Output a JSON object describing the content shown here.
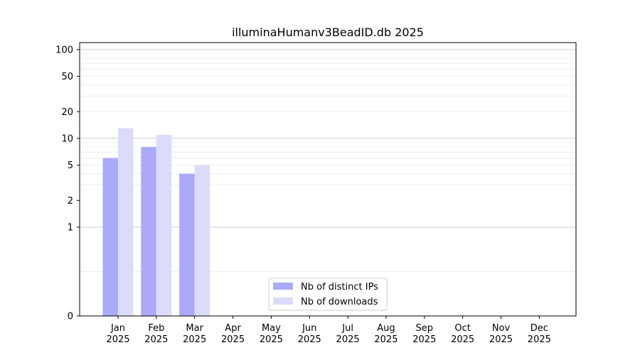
{
  "chart_data": {
    "type": "bar",
    "title": "illuminaHumanv3BeadID.db 2025",
    "xlabel": "",
    "ylabel": "",
    "yscale": "symlog",
    "ylim": [
      0,
      120
    ],
    "yticks": [
      0,
      1,
      2,
      5,
      10,
      20,
      50,
      100
    ],
    "ytick_labels": [
      "0",
      "1",
      "2",
      "5",
      "10",
      "20",
      "50",
      "100"
    ],
    "categories": [
      "Jan\n2025",
      "Feb\n2025",
      "Mar\n2025",
      "Apr\n2025",
      "May\n2025",
      "Jun\n2025",
      "Jul\n2025",
      "Aug\n2025",
      "Sep\n2025",
      "Oct\n2025",
      "Nov\n2025",
      "Dec\n2025"
    ],
    "series": [
      {
        "name": "Nb of distinct IPs",
        "values": [
          6,
          8,
          4,
          0,
          0,
          0,
          0,
          0,
          0,
          0,
          0,
          0
        ],
        "color": "#aaaaf8"
      },
      {
        "name": "Nb of downloads",
        "values": [
          13,
          11,
          5,
          0,
          0,
          0,
          0,
          0,
          0,
          0,
          0,
          0
        ],
        "color": "#dcdcfa"
      }
    ],
    "legend_position": "lower-center",
    "grid": true
  }
}
